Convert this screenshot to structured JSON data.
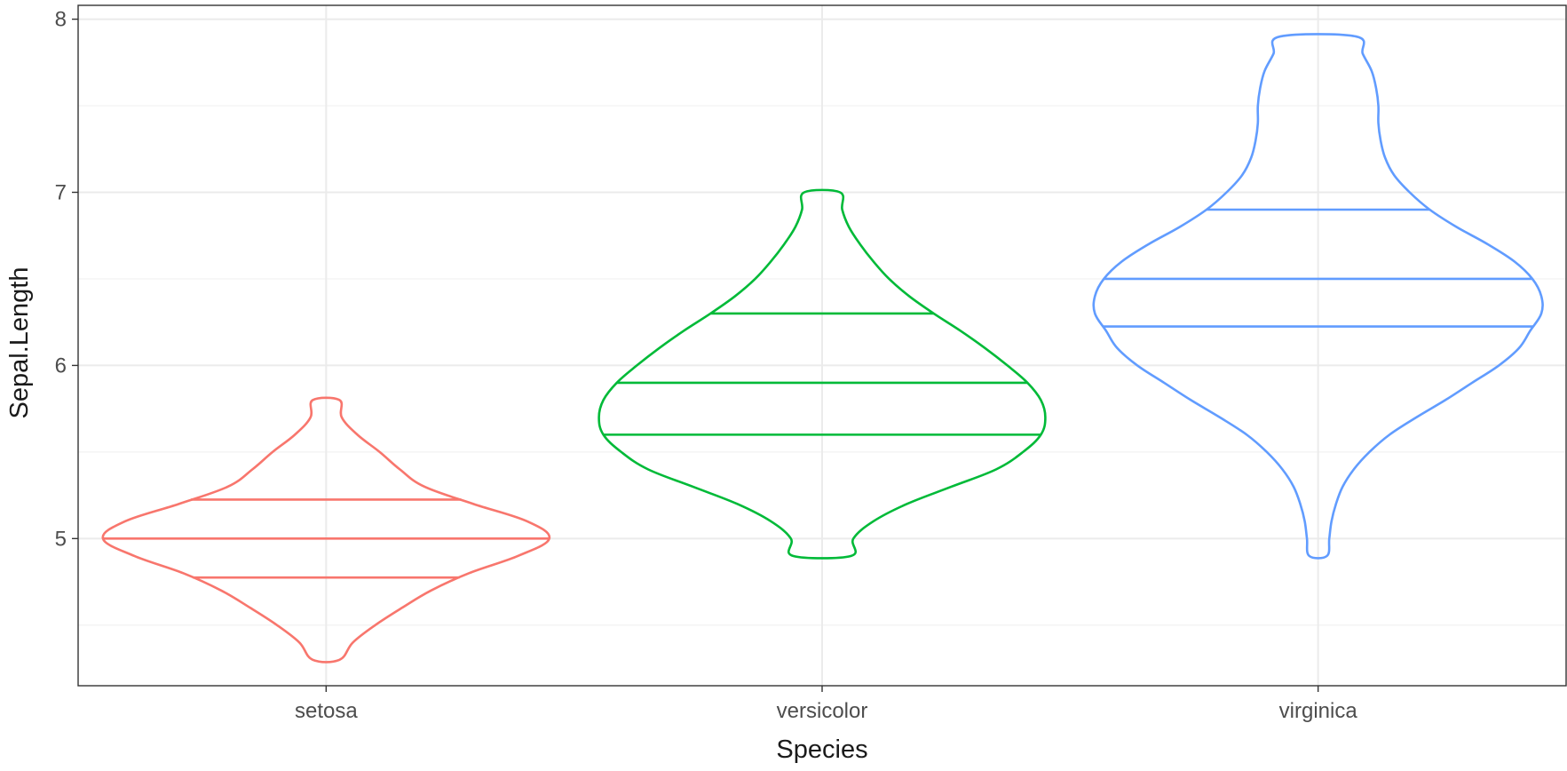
{
  "chart_data": {
    "type": "violin",
    "xlabel": "Species",
    "ylabel": "Sepal.Length",
    "categories": [
      "setosa",
      "versicolor",
      "virginica"
    ],
    "ylim": [
      4.15,
      8.08
    ],
    "y_ticks": [
      "5",
      "6",
      "7",
      "8"
    ],
    "grid": true,
    "legend": "none",
    "series": [
      {
        "category": "setosa",
        "color": "#F8766D",
        "min": 4.3,
        "max": 5.8,
        "quantiles": [
          4.775,
          5.0,
          5.225
        ],
        "density": [
          [
            4.3,
            0.06
          ],
          [
            4.4,
            0.12
          ],
          [
            4.5,
            0.22
          ],
          [
            4.6,
            0.34
          ],
          [
            4.7,
            0.47
          ],
          [
            4.8,
            0.64
          ],
          [
            4.9,
            0.86
          ],
          [
            5.0,
            1.0
          ],
          [
            5.1,
            0.9
          ],
          [
            5.2,
            0.66
          ],
          [
            5.3,
            0.44
          ],
          [
            5.4,
            0.33
          ],
          [
            5.5,
            0.24
          ],
          [
            5.6,
            0.14
          ],
          [
            5.7,
            0.07
          ],
          [
            5.8,
            0.06
          ]
        ]
      },
      {
        "category": "versicolor",
        "color": "#00BA38",
        "min": 4.9,
        "max": 7.0,
        "quantiles": [
          5.6,
          5.9,
          6.3
        ],
        "density": [
          [
            4.9,
            0.13
          ],
          [
            5.0,
            0.14
          ],
          [
            5.1,
            0.23
          ],
          [
            5.2,
            0.38
          ],
          [
            5.3,
            0.58
          ],
          [
            5.4,
            0.78
          ],
          [
            5.5,
            0.9
          ],
          [
            5.6,
            0.98
          ],
          [
            5.7,
            1.0
          ],
          [
            5.8,
            0.98
          ],
          [
            5.9,
            0.92
          ],
          [
            6.0,
            0.83
          ],
          [
            6.1,
            0.73
          ],
          [
            6.2,
            0.62
          ],
          [
            6.3,
            0.5
          ],
          [
            6.4,
            0.39
          ],
          [
            6.5,
            0.3
          ],
          [
            6.6,
            0.23
          ],
          [
            6.7,
            0.17
          ],
          [
            6.8,
            0.12
          ],
          [
            6.9,
            0.09
          ],
          [
            7.0,
            0.08
          ]
        ]
      },
      {
        "category": "virginica",
        "color": "#619CFF",
        "min": 4.9,
        "max": 7.9,
        "quantiles": [
          6.225,
          6.5,
          6.9
        ],
        "density": [
          [
            4.9,
            0.04
          ],
          [
            5.0,
            0.05
          ],
          [
            5.1,
            0.06
          ],
          [
            5.2,
            0.08
          ],
          [
            5.3,
            0.11
          ],
          [
            5.4,
            0.16
          ],
          [
            5.5,
            0.23
          ],
          [
            5.6,
            0.32
          ],
          [
            5.7,
            0.44
          ],
          [
            5.8,
            0.57
          ],
          [
            5.9,
            0.69
          ],
          [
            6.0,
            0.81
          ],
          [
            6.1,
            0.9
          ],
          [
            6.2,
            0.95
          ],
          [
            6.3,
            1.0
          ],
          [
            6.4,
            1.0
          ],
          [
            6.5,
            0.96
          ],
          [
            6.6,
            0.88
          ],
          [
            6.7,
            0.76
          ],
          [
            6.8,
            0.62
          ],
          [
            6.9,
            0.5
          ],
          [
            7.0,
            0.41
          ],
          [
            7.1,
            0.34
          ],
          [
            7.2,
            0.3
          ],
          [
            7.3,
            0.28
          ],
          [
            7.4,
            0.27
          ],
          [
            7.5,
            0.27
          ],
          [
            7.6,
            0.26
          ],
          [
            7.7,
            0.24
          ],
          [
            7.8,
            0.2
          ],
          [
            7.9,
            0.17
          ]
        ]
      }
    ]
  }
}
